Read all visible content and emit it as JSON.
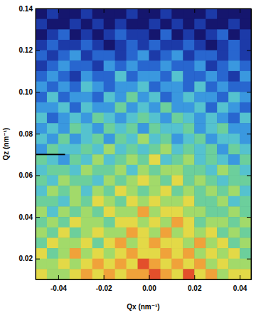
{
  "chart_data": {
    "type": "heatmap",
    "xlabel": "Qx (nm⁻¹)",
    "ylabel": "Qz (nm⁻¹)",
    "xlim": [
      -0.05,
      0.045
    ],
    "ylim": [
      0.01,
      0.14
    ],
    "xticks": [
      -0.04,
      -0.02,
      {
        "value": 0,
        "label": "0.00"
      },
      0.02,
      0.04
    ],
    "yticks": [
      0.02,
      0.04,
      0.06,
      0.08,
      {
        "value": 0.1,
        "label": "0.10"
      },
      {
        "value": 0.12,
        "label": "0.12"
      },
      {
        "value": 0.14,
        "label": "0.14"
      }
    ],
    "x": [
      -0.0475,
      -0.0425,
      -0.0375,
      -0.0325,
      -0.0275,
      -0.0225,
      -0.0175,
      -0.0125,
      -0.0075,
      -0.0025,
      0.0025,
      0.0075,
      0.0125,
      0.0175,
      0.0225,
      0.0275,
      0.0325,
      0.0375,
      0.0425
    ],
    "y": [
      0.1375,
      0.1325,
      0.1275,
      0.1225,
      0.1175,
      0.1125,
      0.1075,
      0.1025,
      0.0975,
      0.0925,
      0.0875,
      0.0825,
      0.0775,
      0.0725,
      0.0675,
      0.0625,
      0.0575,
      0.0525,
      0.0475,
      0.0425,
      0.0375,
      0.0325,
      0.0275,
      0.0225,
      0.0175,
      0.0125
    ],
    "zlim": [
      0,
      9
    ],
    "z": [
      [
        0,
        1,
        0,
        0,
        1,
        0,
        0,
        0,
        1,
        0,
        0,
        1,
        0,
        0,
        0,
        1,
        0,
        0,
        0
      ],
      [
        1,
        0,
        0,
        1,
        0,
        1,
        0,
        1,
        0,
        0,
        1,
        0,
        1,
        0,
        1,
        0,
        0,
        1,
        0
      ],
      [
        0,
        1,
        2,
        0,
        1,
        0,
        1,
        2,
        1,
        1,
        0,
        2,
        0,
        1,
        0,
        1,
        2,
        0,
        1
      ],
      [
        1,
        2,
        1,
        1,
        2,
        1,
        0,
        1,
        2,
        1,
        2,
        1,
        1,
        2,
        1,
        0,
        1,
        2,
        1
      ],
      [
        2,
        1,
        2,
        3,
        1,
        2,
        2,
        1,
        2,
        3,
        1,
        2,
        3,
        1,
        2,
        2,
        1,
        2,
        1
      ],
      [
        1,
        2,
        3,
        2,
        2,
        1,
        3,
        2,
        3,
        2,
        2,
        3,
        2,
        2,
        3,
        1,
        2,
        3,
        2
      ],
      [
        2,
        3,
        2,
        1,
        3,
        2,
        2,
        4,
        2,
        3,
        3,
        2,
        4,
        2,
        2,
        3,
        2,
        1,
        3
      ],
      [
        3,
        2,
        3,
        2,
        4,
        3,
        2,
        3,
        3,
        4,
        2,
        3,
        3,
        2,
        4,
        2,
        3,
        2,
        2
      ],
      [
        2,
        4,
        2,
        3,
        3,
        2,
        4,
        3,
        5,
        3,
        4,
        2,
        3,
        4,
        3,
        3,
        2,
        4,
        3
      ],
      [
        3,
        3,
        4,
        2,
        4,
        3,
        3,
        5,
        3,
        4,
        3,
        5,
        3,
        3,
        4,
        2,
        4,
        3,
        2
      ],
      [
        4,
        2,
        3,
        4,
        3,
        5,
        4,
        3,
        4,
        5,
        4,
        3,
        5,
        4,
        3,
        4,
        3,
        2,
        4
      ],
      [
        3,
        4,
        3,
        5,
        4,
        3,
        5,
        4,
        5,
        3,
        5,
        4,
        4,
        5,
        3,
        4,
        5,
        3,
        3
      ],
      [
        4,
        3,
        5,
        3,
        4,
        5,
        3,
        5,
        4,
        6,
        4,
        5,
        3,
        4,
        5,
        3,
        4,
        4,
        3
      ],
      [
        3,
        5,
        4,
        4,
        5,
        4,
        6,
        4,
        5,
        4,
        5,
        6,
        4,
        5,
        4,
        5,
        3,
        5,
        4
      ],
      [
        5,
        4,
        3,
        5,
        4,
        6,
        4,
        5,
        6,
        5,
        7,
        4,
        5,
        6,
        4,
        5,
        4,
        3,
        5
      ],
      [
        4,
        5,
        5,
        4,
        6,
        5,
        5,
        6,
        4,
        6,
        5,
        6,
        6,
        5,
        5,
        4,
        6,
        5,
        4
      ],
      [
        5,
        4,
        6,
        5,
        5,
        4,
        6,
        5,
        6,
        7,
        6,
        5,
        7,
        5,
        6,
        5,
        4,
        5,
        5
      ],
      [
        4,
        6,
        5,
        6,
        4,
        6,
        5,
        7,
        6,
        5,
        6,
        7,
        5,
        6,
        5,
        6,
        5,
        6,
        4
      ],
      [
        5,
        5,
        4,
        6,
        5,
        7,
        6,
        5,
        7,
        6,
        7,
        6,
        6,
        7,
        5,
        5,
        6,
        4,
        5
      ],
      [
        6,
        4,
        6,
        5,
        6,
        5,
        7,
        6,
        6,
        8,
        6,
        7,
        7,
        6,
        6,
        5,
        5,
        6,
        5
      ],
      [
        5,
        6,
        5,
        7,
        6,
        6,
        5,
        7,
        7,
        6,
        7,
        6,
        8,
        7,
        5,
        6,
        6,
        5,
        6
      ],
      [
        6,
        5,
        7,
        5,
        6,
        7,
        6,
        6,
        8,
        7,
        6,
        8,
        6,
        7,
        6,
        7,
        5,
        6,
        5
      ],
      [
        5,
        7,
        6,
        6,
        7,
        5,
        7,
        8,
        6,
        7,
        8,
        7,
        7,
        6,
        8,
        6,
        7,
        5,
        6
      ],
      [
        7,
        5,
        6,
        8,
        6,
        7,
        6,
        7,
        8,
        7,
        7,
        8,
        7,
        8,
        6,
        7,
        6,
        7,
        5
      ],
      [
        6,
        6,
        7,
        6,
        7,
        8,
        7,
        8,
        7,
        9,
        8,
        7,
        8,
        7,
        8,
        6,
        7,
        6,
        6
      ],
      [
        7,
        6,
        6,
        7,
        8,
        7,
        8,
        7,
        8,
        8,
        9,
        8,
        7,
        9,
        7,
        8,
        6,
        7,
        7
      ]
    ],
    "reference_line": {
      "y": 0.07,
      "x": [
        -0.05,
        -0.037
      ]
    }
  }
}
